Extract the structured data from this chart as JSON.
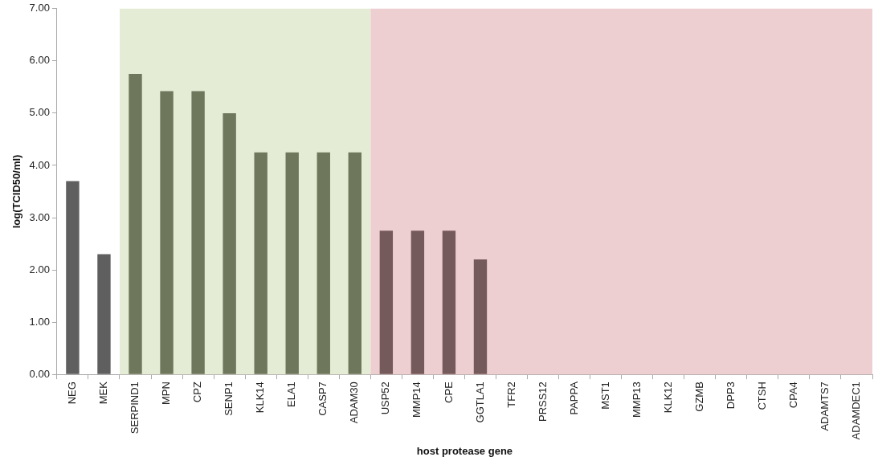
{
  "chart_data": {
    "type": "bar",
    "xlabel": "host protease gene",
    "ylabel": "log(TCID50/ml)",
    "categories": [
      "NEG",
      "MEK",
      "SERPIND1",
      "MPN",
      "CPZ",
      "SENP1",
      "KLK14",
      "ELA1",
      "CASP7",
      "ADAM30",
      "USP52",
      "MMP14",
      "CPE",
      "GGTLA1",
      "TFR2",
      "PRSS12",
      "PAPPA",
      "MST1",
      "MMP13",
      "KLK12",
      "GZMB",
      "DPP3",
      "CTSH",
      "CPA4",
      "ADAMTS7",
      "ADAMDEC1"
    ],
    "values": [
      3.7,
      2.3,
      5.75,
      5.42,
      5.42,
      5.0,
      4.25,
      4.25,
      4.25,
      4.25,
      2.75,
      2.75,
      2.75,
      2.2,
      0,
      0,
      0,
      0,
      0,
      0,
      0,
      0,
      0,
      0,
      0,
      0
    ],
    "colors": [
      "#5f5f5f",
      "#5f5f5f",
      "#6e775c",
      "#6e775c",
      "#6e775c",
      "#6e775c",
      "#6e775c",
      "#6e775c",
      "#6e775c",
      "#6e775c",
      "#755a5c",
      "#755a5c",
      "#755a5c",
      "#755a5c",
      "#755a5c",
      "#755a5c",
      "#755a5c",
      "#755a5c",
      "#755a5c",
      "#755a5c",
      "#755a5c",
      "#755a5c",
      "#755a5c",
      "#755a5c",
      "#755a5c",
      "#755a5c"
    ],
    "ylim": [
      0,
      7
    ],
    "yticks": [
      {
        "value": 0,
        "label": "0.00"
      },
      {
        "value": 1,
        "label": "1.00"
      },
      {
        "value": 2,
        "label": "2.00"
      },
      {
        "value": 3,
        "label": "3.00"
      },
      {
        "value": 4,
        "label": "4.00"
      },
      {
        "value": 5,
        "label": "5.00"
      },
      {
        "value": 6,
        "label": "6.00"
      },
      {
        "value": 7,
        "label": "7.00"
      }
    ],
    "bands": [
      {
        "axis": "x",
        "from": "SERPIND1",
        "to": "ADAM30",
        "color": "#e5ecd5"
      },
      {
        "axis": "x",
        "from": "USP52",
        "to": "ADAMDEC1",
        "color": "#eecfd1"
      }
    ],
    "grid": false,
    "legend": false
  }
}
